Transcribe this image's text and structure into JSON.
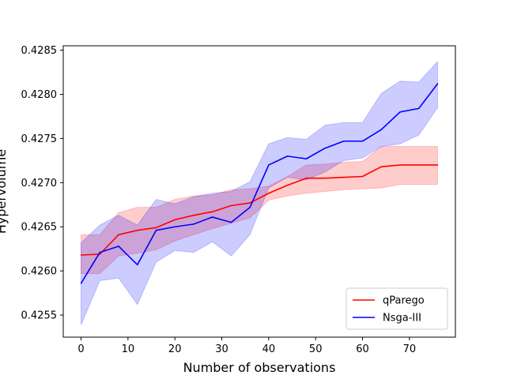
{
  "chart_data": {
    "type": "line",
    "xlabel": "Number of observations",
    "ylabel": "Hypervolume",
    "xlim": [
      -3.8,
      79.8
    ],
    "ylim": [
      0.42525,
      0.42855
    ],
    "xticks": [
      0,
      10,
      20,
      30,
      40,
      50,
      60,
      70
    ],
    "yticks": [
      0.4255,
      0.426,
      0.4265,
      0.427,
      0.4275,
      0.428,
      0.4285
    ],
    "ytick_labels": [
      "0.4255",
      "0.4260",
      "0.4265",
      "0.4270",
      "0.4275",
      "0.4280",
      "0.4285"
    ],
    "grid": false,
    "legend_position": "lower right",
    "x": [
      0,
      4,
      8,
      12,
      16,
      20,
      24,
      28,
      32,
      36,
      40,
      44,
      48,
      52,
      56,
      60,
      64,
      68,
      72,
      76
    ],
    "series": [
      {
        "name": "qParego",
        "color": "#ff0000",
        "band_color": "#ff0000",
        "mean": [
          0.42618,
          0.42619,
          0.42641,
          0.42646,
          0.42649,
          0.42658,
          0.42663,
          0.42667,
          0.42674,
          0.42677,
          0.42688,
          0.42697,
          0.42705,
          0.42705,
          0.42706,
          0.42707,
          0.42718,
          0.4272,
          0.4272,
          0.4272
        ],
        "lower": [
          0.42597,
          0.42597,
          0.42617,
          0.4262,
          0.42624,
          0.42634,
          0.42641,
          0.42648,
          0.42654,
          0.4266,
          0.4268,
          0.42685,
          0.42688,
          0.4269,
          0.42692,
          0.42693,
          0.42694,
          0.42698,
          0.42698,
          0.42698
        ],
        "upper": [
          0.42641,
          0.42641,
          0.42666,
          0.42672,
          0.42672,
          0.42681,
          0.42685,
          0.42686,
          0.42692,
          0.42693,
          0.42696,
          0.42707,
          0.4272,
          0.42721,
          0.42723,
          0.42724,
          0.42741,
          0.42741,
          0.42741,
          0.42741
        ]
      },
      {
        "name": "Nsga-III",
        "color": "#0000ff",
        "band_color": "#0000ff",
        "mean": [
          0.42586,
          0.42621,
          0.42628,
          0.42607,
          0.42646,
          0.4265,
          0.42653,
          0.42661,
          0.42655,
          0.42672,
          0.4272,
          0.4273,
          0.42727,
          0.42739,
          0.42747,
          0.42747,
          0.4276,
          0.4278,
          0.42784,
          0.42812
        ],
        "lower": [
          0.42539,
          0.42589,
          0.42592,
          0.42562,
          0.4261,
          0.42623,
          0.42621,
          0.42633,
          0.42617,
          0.42641,
          0.42694,
          0.42706,
          0.42703,
          0.42712,
          0.42725,
          0.42728,
          0.42741,
          0.42744,
          0.42754,
          0.42785
        ],
        "upper": [
          0.42632,
          0.42652,
          0.42663,
          0.42652,
          0.42681,
          0.42676,
          0.42684,
          0.42688,
          0.4269,
          0.42701,
          0.42744,
          0.42751,
          0.42749,
          0.42765,
          0.42768,
          0.42768,
          0.42801,
          0.42815,
          0.42814,
          0.42837
        ]
      }
    ]
  }
}
